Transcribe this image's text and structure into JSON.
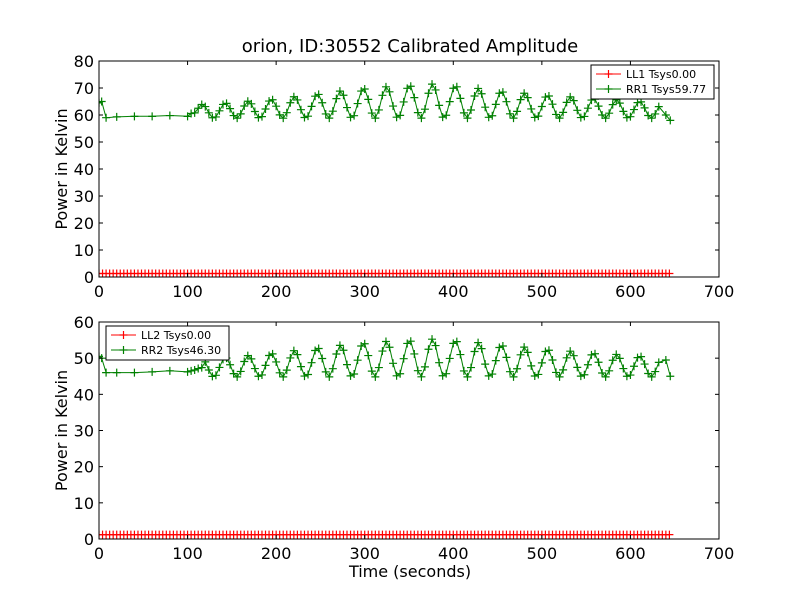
{
  "figure": {
    "title": "orion, ID:30552 Calibrated Amplitude",
    "xlabel": "Time (seconds)"
  },
  "chart_data": [
    {
      "type": "line",
      "title": "orion, ID:30552 Calibrated Amplitude",
      "xlabel": "",
      "ylabel": "Power in Kelvin",
      "xlim": [
        0,
        700
      ],
      "ylim": [
        0,
        80
      ],
      "xticks": [
        "0",
        "100",
        "200",
        "300",
        "400",
        "500",
        "600",
        "700"
      ],
      "yticks": [
        "0",
        "10",
        "20",
        "30",
        "40",
        "50",
        "60",
        "70",
        "80"
      ],
      "legend_position": "top-right",
      "series": [
        {
          "name": "LL1 Tsys0.00",
          "color": "#ff0000",
          "marker": "+",
          "constant": 1.3,
          "x_range": [
            0,
            645
          ]
        },
        {
          "name": "RR1 Tsys59.77",
          "color": "#008000",
          "marker": "+",
          "x_range": [
            0,
            645
          ],
          "envelope_x": [
            0,
            50,
            100,
            150,
            200,
            250,
            300,
            350,
            375,
            400,
            450,
            500,
            550,
            600,
            640
          ],
          "envelope_amp": [
            0.3,
            0.3,
            0.6,
            1.6,
            3.0,
            5.0,
            7.0,
            8.0,
            8.5,
            8.0,
            6.0,
            4.5,
            3.3,
            2.3,
            1.5
          ],
          "baseline": 63.5,
          "period": 26,
          "points": [
            [
              0,
              64.5
            ],
            [
              3,
              65
            ],
            [
              8,
              59
            ],
            [
              20,
              59.3
            ],
            [
              40,
              59.5
            ],
            [
              60,
              59.5
            ],
            [
              80,
              59.8
            ],
            [
              100,
              59.5
            ],
            [
              640,
              60
            ],
            [
              645,
              58
            ]
          ]
        }
      ]
    },
    {
      "type": "line",
      "xlabel": "Time (seconds)",
      "ylabel": "Power in Kelvin",
      "xlim": [
        0,
        700
      ],
      "ylim": [
        0,
        60
      ],
      "xticks": [
        "0",
        "100",
        "200",
        "300",
        "400",
        "500",
        "600",
        "700"
      ],
      "yticks": [
        "0",
        "10",
        "20",
        "30",
        "40",
        "50",
        "60"
      ],
      "legend_position": "top-left",
      "series": [
        {
          "name": "LL2 Tsys0.00",
          "color": "#ff0000",
          "marker": "+",
          "constant": 1.2,
          "x_range": [
            0,
            645
          ]
        },
        {
          "name": "RR2 Tsys46.30",
          "color": "#008000",
          "marker": "+",
          "x_range": [
            0,
            645
          ],
          "envelope_x": [
            0,
            50,
            100,
            150,
            200,
            250,
            300,
            350,
            375,
            400,
            450,
            500,
            550,
            600,
            640
          ],
          "envelope_amp": [
            0.3,
            0.3,
            0.5,
            1.3,
            2.5,
            4.0,
            5.3,
            6.0,
            6.3,
            6.0,
            4.8,
            3.6,
            2.6,
            1.8,
            1.2
          ],
          "baseline": 49.5,
          "period": 26,
          "points": [
            [
              0,
              50.5
            ],
            [
              3,
              50
            ],
            [
              8,
              46
            ],
            [
              20,
              46
            ],
            [
              40,
              46
            ],
            [
              60,
              46.2
            ],
            [
              80,
              46.5
            ],
            [
              100,
              46.2
            ],
            [
              640,
              49.5
            ],
            [
              645,
              45
            ]
          ]
        }
      ]
    }
  ]
}
